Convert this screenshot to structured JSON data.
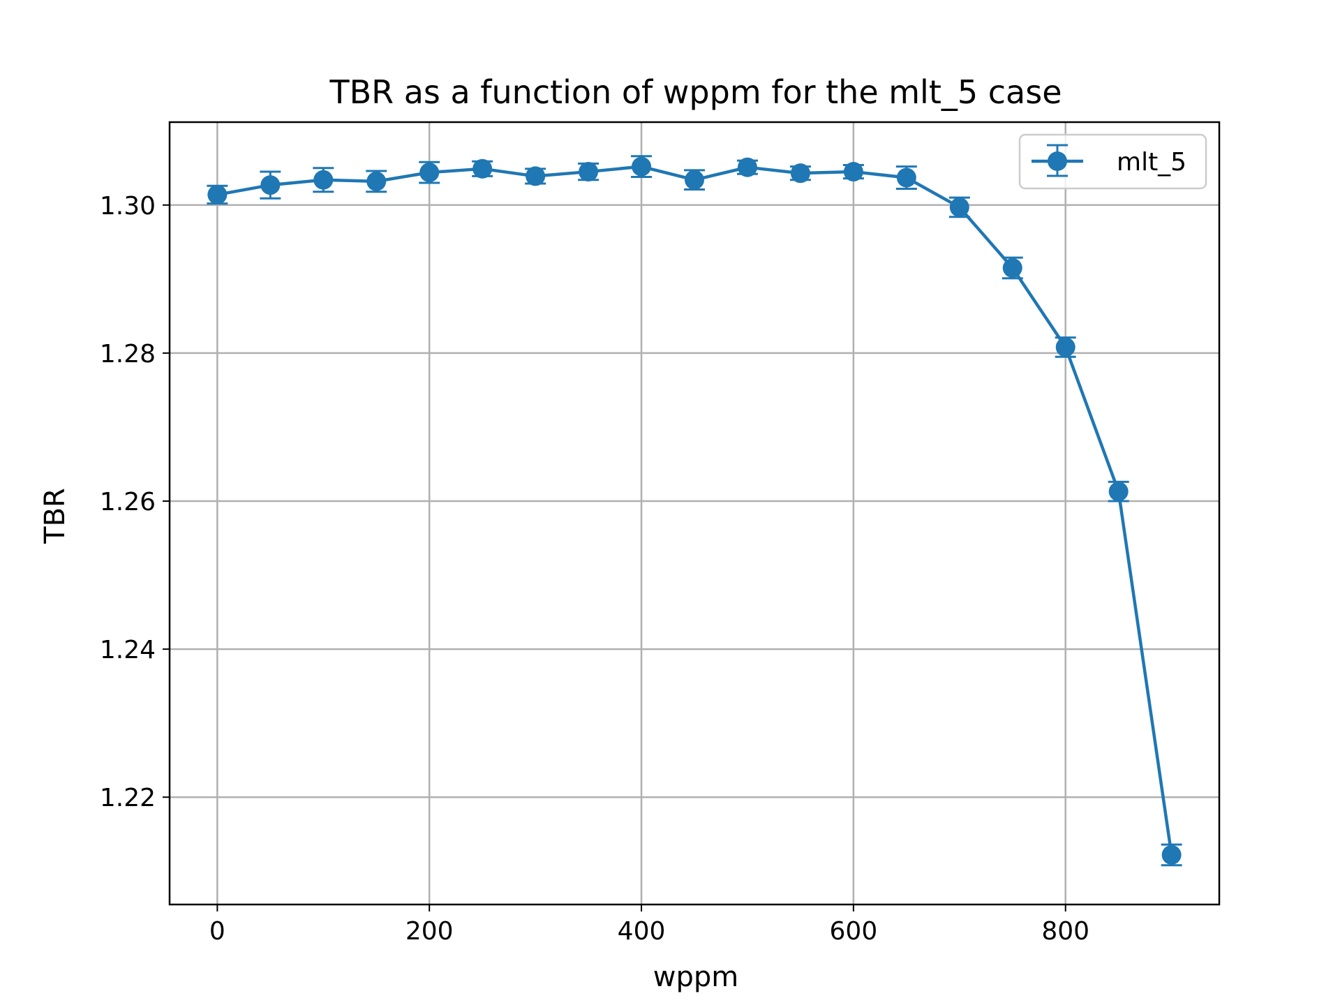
{
  "chart_data": {
    "type": "line",
    "title": "TBR as a function of wppm for the mlt_5 case",
    "xlabel": "wppm",
    "ylabel": "TBR",
    "xlim": [
      -45,
      945
    ],
    "ylim": [
      1.2055,
      1.3112
    ],
    "xticks": [
      0,
      200,
      400,
      600,
      800
    ],
    "xtick_labels": [
      "0",
      "200",
      "400",
      "600",
      "800"
    ],
    "yticks": [
      1.22,
      1.24,
      1.26,
      1.28,
      1.3
    ],
    "ytick_labels": [
      "1.22",
      "1.24",
      "1.26",
      "1.28",
      "1.30"
    ],
    "grid": true,
    "legend": {
      "position": "top-right",
      "entries": [
        "mlt_5"
      ]
    },
    "series": [
      {
        "name": "mlt_5",
        "color": "#1f77b4",
        "marker": "circle",
        "error_bars": true,
        "x": [
          0,
          50,
          100,
          150,
          200,
          250,
          300,
          350,
          400,
          450,
          500,
          550,
          600,
          650,
          700,
          750,
          800,
          850,
          900
        ],
        "y": [
          1.3014,
          1.3027,
          1.3034,
          1.3032,
          1.3044,
          1.3049,
          1.3039,
          1.3045,
          1.3052,
          1.3034,
          1.3051,
          1.3043,
          1.3045,
          1.3037,
          1.2997,
          1.2915,
          1.2808,
          1.2613,
          1.2122
        ],
        "yerr": [
          0.0012,
          0.0018,
          0.0016,
          0.0014,
          0.0014,
          0.001,
          0.001,
          0.0011,
          0.0014,
          0.0013,
          0.0009,
          0.0009,
          0.0009,
          0.0015,
          0.0013,
          0.0014,
          0.0013,
          0.0013,
          0.0014
        ]
      }
    ]
  }
}
